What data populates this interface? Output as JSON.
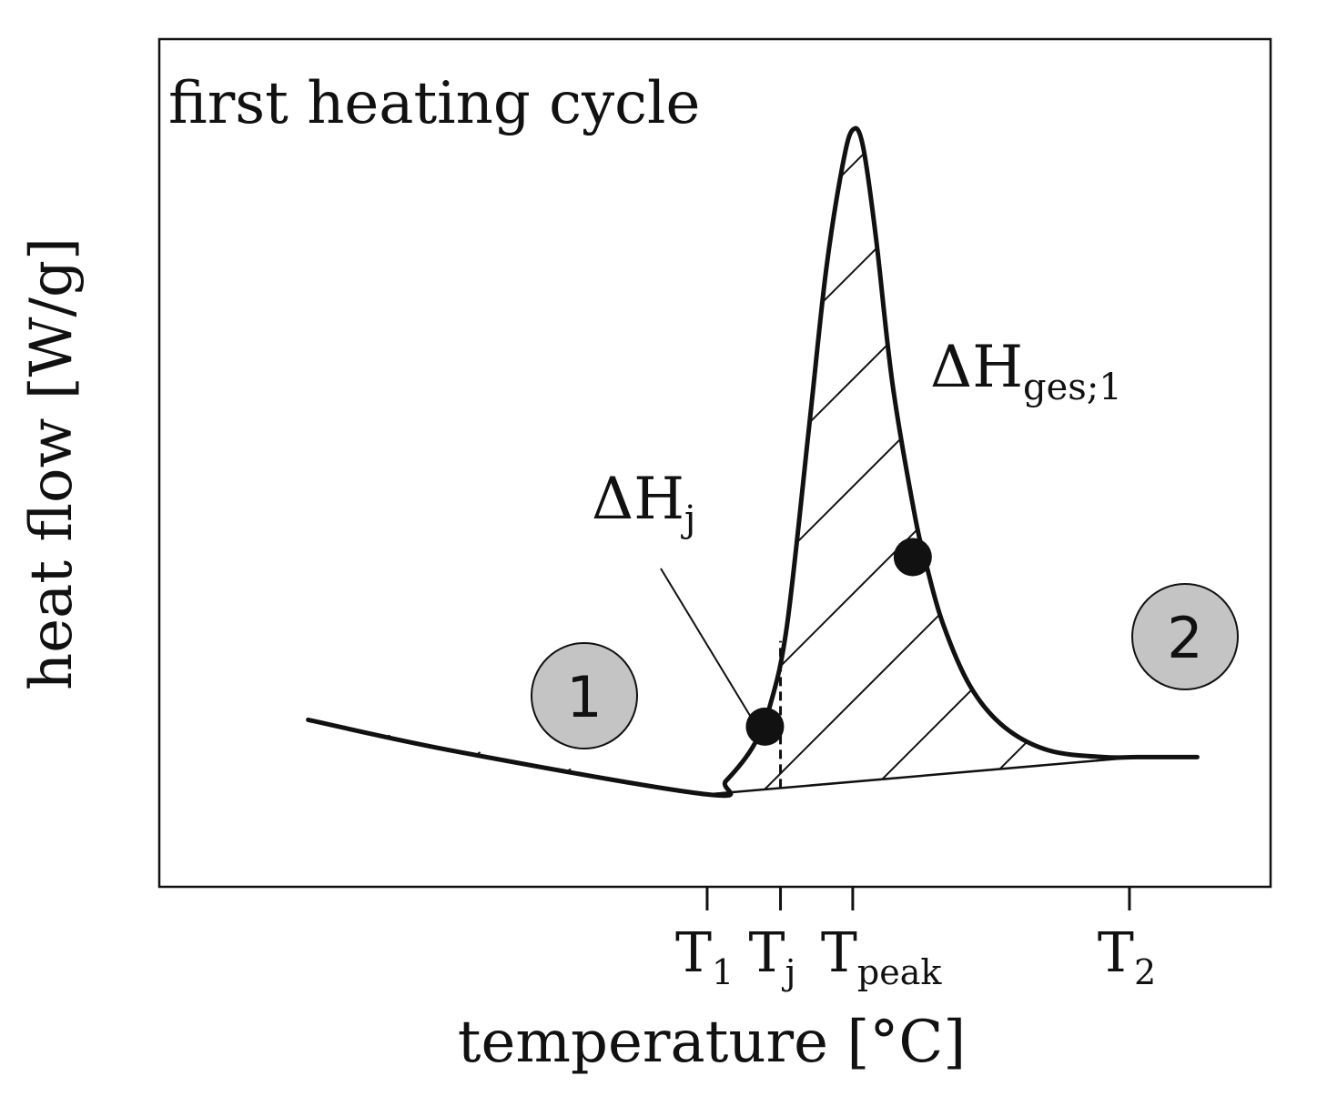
{
  "chart_data": {
    "type": "line",
    "title": "first heating cycle",
    "xlabel": "temperature [°C]",
    "ylabel": "heat flow [W/g]",
    "grid": false,
    "xlim": [
      0,
      100
    ],
    "ylim": [
      0,
      100
    ],
    "x_ticks": [
      {
        "key": "t1",
        "base": "T",
        "subscript": "1",
        "x": 49.3
      },
      {
        "key": "tj",
        "base": "T",
        "subscript": "j",
        "x": 55.9
      },
      {
        "key": "tpeak",
        "base": "T",
        "subscript": "peak",
        "x": 62.4
      },
      {
        "key": "t2",
        "base": "T",
        "subscript": "2",
        "x": 87.3
      }
    ],
    "series": [
      {
        "name": "heat flow curve",
        "x": [
          13.4,
          27.0,
          49.3,
          51.0,
          53.5,
          55.0,
          56.5,
          58.5,
          60.0,
          61.5,
          62.4,
          63.3,
          64.5,
          66.0,
          68.0,
          69.0,
          70.5,
          73.0,
          76.0,
          80.0,
          85.0,
          88.0,
          93.4
        ],
        "y": [
          19.7,
          15.9,
          10.9,
          12.5,
          16.7,
          21.6,
          31.0,
          54.6,
          72.7,
          85.2,
          89.3,
          87.5,
          76.5,
          59.1,
          43.7,
          38.1,
          31.1,
          23.6,
          18.9,
          16.1,
          15.3,
          15.3,
          15.3
        ]
      },
      {
        "name": "baseline",
        "x": [
          49.3,
          88.0
        ],
        "y": [
          10.9,
          15.3
        ]
      }
    ],
    "markers": [
      {
        "name": "point-tj",
        "x": 54.5,
        "y": 18.9
      },
      {
        "name": "point-ges",
        "x": 67.8,
        "y": 38.9
      }
    ],
    "annotations": {
      "dh_j": {
        "base": "ΔH",
        "subscript": "j"
      },
      "dh_ges": {
        "base": "ΔH",
        "subscript": "ges;1"
      },
      "region_1": "1",
      "region_2": "2"
    },
    "colors": {
      "line": "#111111",
      "circle_fill": "#c4c4c4",
      "background": "#ffffff"
    }
  }
}
